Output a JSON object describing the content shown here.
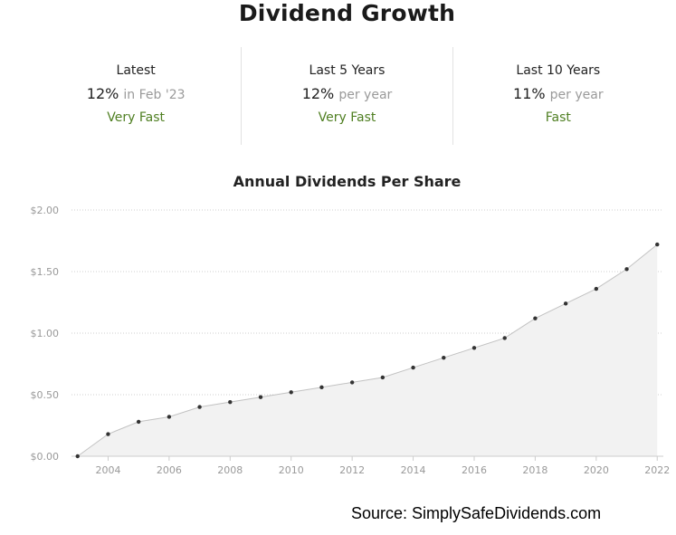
{
  "title": "Dividend Growth",
  "stats": [
    {
      "label": "Latest",
      "value": "12%",
      "sub": "in Feb '23",
      "rating": "Very Fast"
    },
    {
      "label": "Last 5 Years",
      "value": "12%",
      "sub": "per year",
      "rating": "Very Fast"
    },
    {
      "label": "Last 10 Years",
      "value": "11%",
      "sub": "per year",
      "rating": "Fast"
    }
  ],
  "source": "Source: SimplySafeDividends.com",
  "colors": {
    "rating": "#4f7f22",
    "line": "#c2c2c2",
    "area": "#f2f2f2",
    "point": "#333333",
    "grid": "#cfcfcf"
  },
  "chart_data": {
    "type": "area",
    "title": "Annual Dividends Per Share",
    "xlabel": "",
    "ylabel": "",
    "x": [
      2003,
      2004,
      2005,
      2006,
      2007,
      2008,
      2009,
      2010,
      2011,
      2012,
      2013,
      2014,
      2015,
      2016,
      2017,
      2018,
      2019,
      2020,
      2021,
      2022
    ],
    "series": [
      {
        "values": [
          0.0,
          0.18,
          0.28,
          0.32,
          0.4,
          0.44,
          0.48,
          0.52,
          0.56,
          0.6,
          0.64,
          0.72,
          0.8,
          0.88,
          0.96,
          1.12,
          1.24,
          1.36,
          1.52,
          1.72
        ]
      }
    ],
    "ylim": [
      0,
      2.0
    ],
    "y_ticks": [
      0,
      0.5,
      1.0,
      1.5,
      2.0
    ],
    "y_tick_labels": [
      "$0.00",
      "$0.50",
      "$1.00",
      "$1.50",
      "$2.00"
    ],
    "x_ticks": [
      2004,
      2006,
      2008,
      2010,
      2012,
      2014,
      2016,
      2018,
      2020,
      2022
    ],
    "x_tick_labels": [
      "2004",
      "2006",
      "2008",
      "2010",
      "2012",
      "2014",
      "2016",
      "2018",
      "2020",
      "2022"
    ],
    "grid": "horizontal dotted",
    "legend": "none"
  }
}
